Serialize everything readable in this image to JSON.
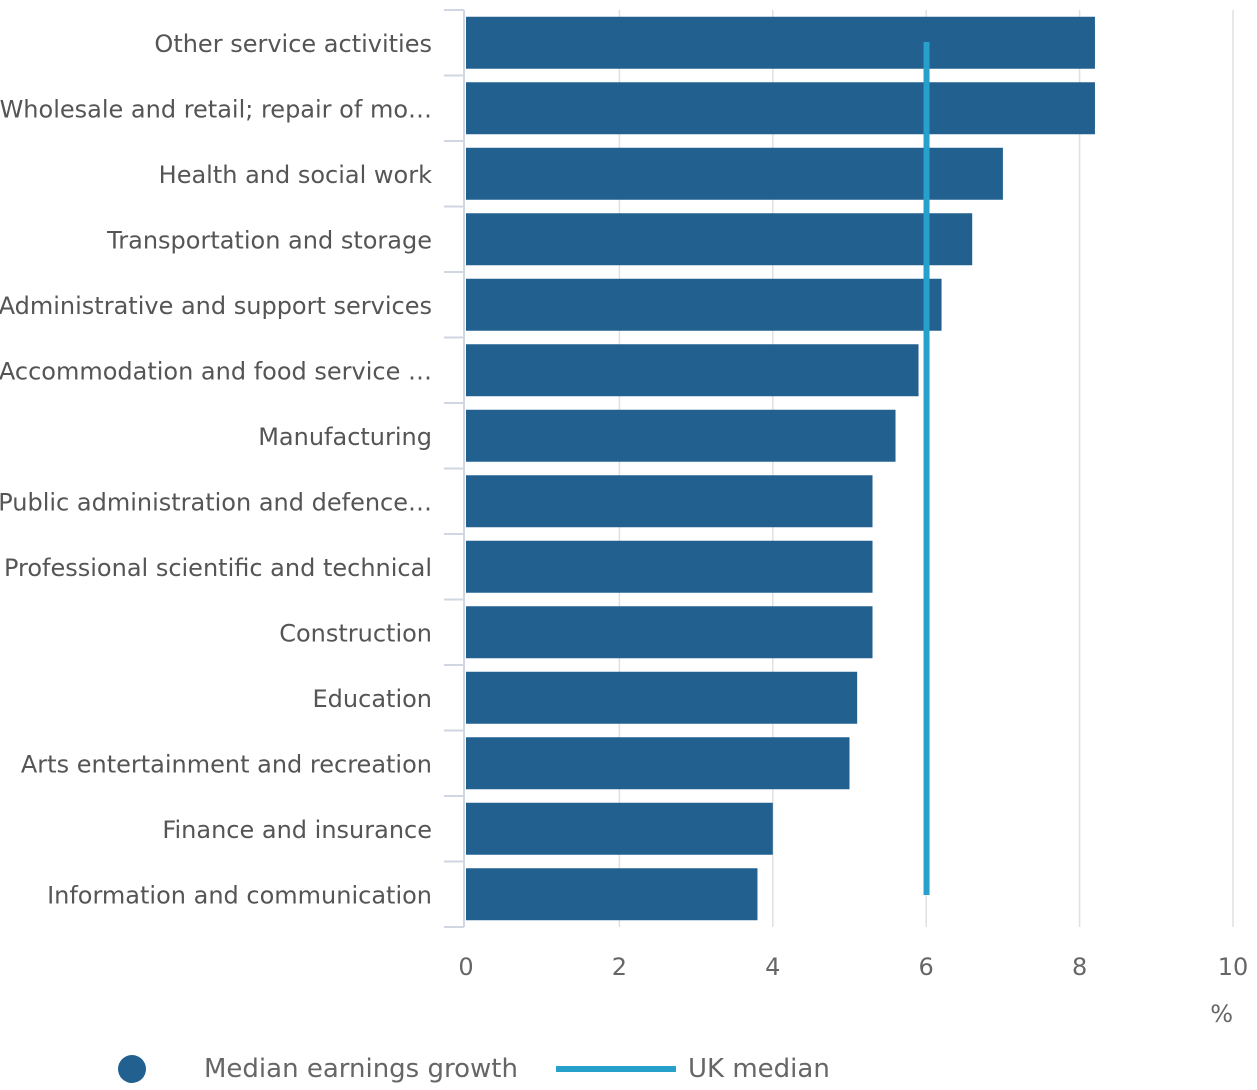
{
  "chart_data": {
    "type": "bar",
    "orientation": "horizontal",
    "categories": [
      "Other service activities",
      "Wholesale and retail; repair of mo…",
      "Health and social work",
      "Transportation and storage",
      "Administrative and support services",
      "Accommodation and food service …",
      "Manufacturing",
      "Public administration and defence…",
      "Professional scientific and technical",
      "Construction",
      "Education",
      "Arts entertainment and recreation",
      "Finance and insurance",
      "Information and communication"
    ],
    "series": [
      {
        "name": "Median earnings growth",
        "values": [
          8.2,
          8.2,
          7.0,
          6.6,
          6.2,
          5.9,
          5.6,
          5.3,
          5.3,
          5.3,
          5.1,
          5.0,
          4.0,
          3.8
        ]
      }
    ],
    "reference_lines": [
      {
        "name": "UK median",
        "value": 5.9
      }
    ],
    "xlim": [
      0,
      10
    ],
    "xticks": [
      0,
      2,
      4,
      6,
      8,
      10
    ],
    "xticklabels": [
      "0",
      "2",
      "4",
      "6",
      "8",
      "10"
    ],
    "x_unit": "%",
    "grid": "vertical",
    "legend": "bottom-left",
    "colors": {
      "bars": "#21608f",
      "reference_line": "#27a0cc",
      "grid": "#e0e0e0",
      "axis": "#d0d6e2"
    }
  },
  "legend": {
    "items": [
      {
        "label": "Median earnings growth",
        "marker": "circle",
        "color": "#21608f"
      },
      {
        "label": "UK median",
        "marker": "line",
        "color": "#27a0cc"
      }
    ]
  }
}
